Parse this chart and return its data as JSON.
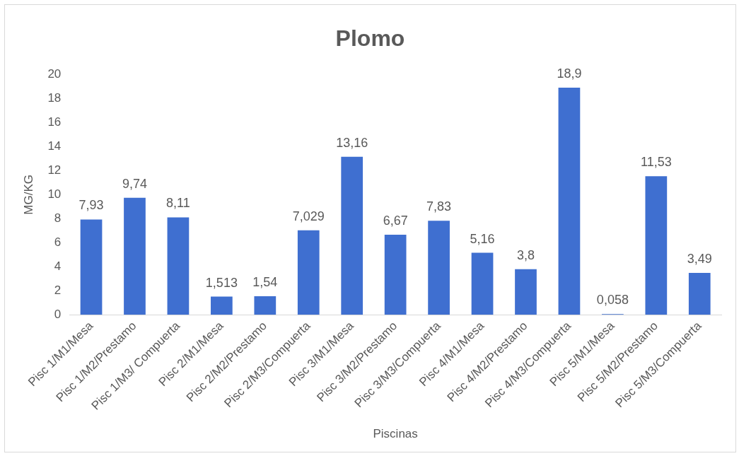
{
  "chart_data": {
    "type": "bar",
    "title": "Plomo",
    "xlabel": "Piscinas",
    "ylabel": "MG/KG",
    "categories": [
      "Pisc 1/M1/Mesa",
      "Pisc 1/M2/Prestamo",
      "Pisc 1/M3/ Compuerta",
      "Pisc 2/M1/Mesa",
      "Pisc 2/M2/Prestamo",
      "Pisc 2/M3/Compuerta",
      "Pisc 3/M1/Mesa",
      "Pisc 3/M2/Prestamo",
      "Pisc 3/M3/Compuerta",
      "Pisc 4/M1/Mesa",
      "Pisc 4/M2/Prestamo",
      "Pisc 4/M3/Compuerta",
      "Pisc 5/M1/Mesa",
      "Pisc 5/M2/Prestamo",
      "Pisc 5/M3/Compuerta"
    ],
    "values": [
      7.93,
      9.74,
      8.11,
      1.513,
      1.54,
      7.029,
      13.16,
      6.67,
      7.83,
      5.16,
      3.8,
      18.9,
      0.058,
      11.53,
      3.49
    ],
    "value_labels": [
      "7,93",
      "9,74",
      "8,11",
      "1,513",
      "1,54",
      "7,029",
      "13,16",
      "6,67",
      "7,83",
      "5,16",
      "3,8",
      "18,9",
      "0,058",
      "11,53",
      "3,49"
    ],
    "color": "#3f6fd0",
    "ylim": [
      0,
      20
    ],
    "yticks": [
      0,
      2,
      4,
      6,
      8,
      10,
      12,
      14,
      16,
      18,
      20
    ],
    "grid": false,
    "legend": false
  }
}
